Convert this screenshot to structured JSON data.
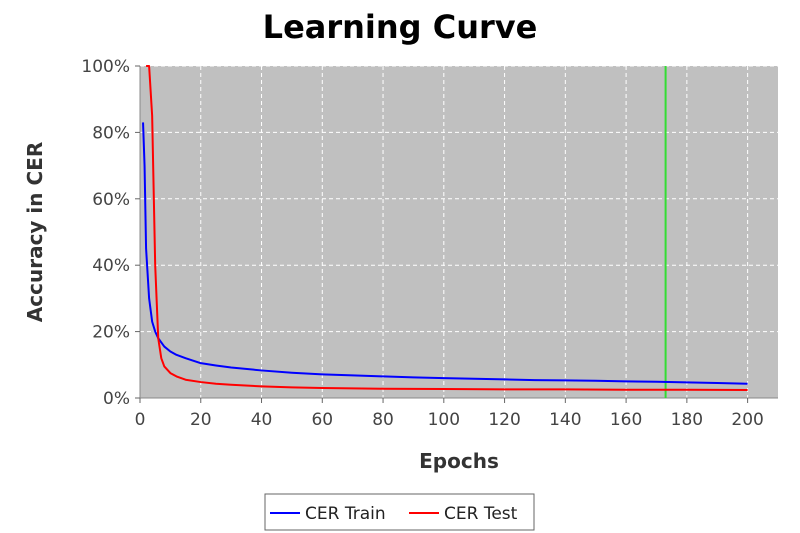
{
  "chart_data": {
    "type": "line",
    "title": "Learning Curve",
    "xlabel": "Epochs",
    "ylabel": "Accuracy in CER",
    "xlim": [
      0,
      210
    ],
    "ylim": [
      0,
      100
    ],
    "x_ticks": [
      0,
      20,
      40,
      60,
      80,
      100,
      120,
      140,
      160,
      180,
      200
    ],
    "y_ticks": [
      0,
      20,
      40,
      60,
      80,
      100
    ],
    "y_tick_format": "{v}%",
    "grid": true,
    "plot_background": "#c0c0c0",
    "legend_position": "bottom-center",
    "marker_line": {
      "x": 173,
      "color": "#33dd33"
    },
    "series": [
      {
        "name": "CER Train",
        "color": "#0000ff",
        "x": [
          1,
          1.5,
          2,
          3,
          4,
          5,
          6,
          8,
          10,
          12,
          15,
          20,
          25,
          30,
          40,
          50,
          60,
          70,
          80,
          90,
          100,
          110,
          120,
          130,
          140,
          150,
          160,
          170,
          180,
          190,
          200
        ],
        "y": [
          83,
          70,
          45,
          30,
          23,
          20,
          18,
          15.5,
          14,
          13,
          12,
          10.5,
          9.8,
          9.2,
          8.3,
          7.6,
          7.1,
          6.8,
          6.5,
          6.2,
          6.0,
          5.8,
          5.6,
          5.4,
          5.3,
          5.2,
          5.0,
          4.9,
          4.7,
          4.5,
          4.3
        ]
      },
      {
        "name": "CER Test",
        "color": "#ff0000",
        "x": [
          2,
          3,
          4,
          5,
          6,
          7,
          8,
          10,
          12,
          15,
          20,
          25,
          30,
          40,
          50,
          60,
          80,
          100,
          120,
          140,
          160,
          180,
          200
        ],
        "y": [
          100,
          100,
          85,
          40,
          18,
          12,
          9.5,
          7.5,
          6.5,
          5.5,
          4.8,
          4.3,
          4.0,
          3.5,
          3.2,
          3.0,
          2.8,
          2.7,
          2.6,
          2.6,
          2.5,
          2.5,
          2.4
        ]
      }
    ]
  }
}
